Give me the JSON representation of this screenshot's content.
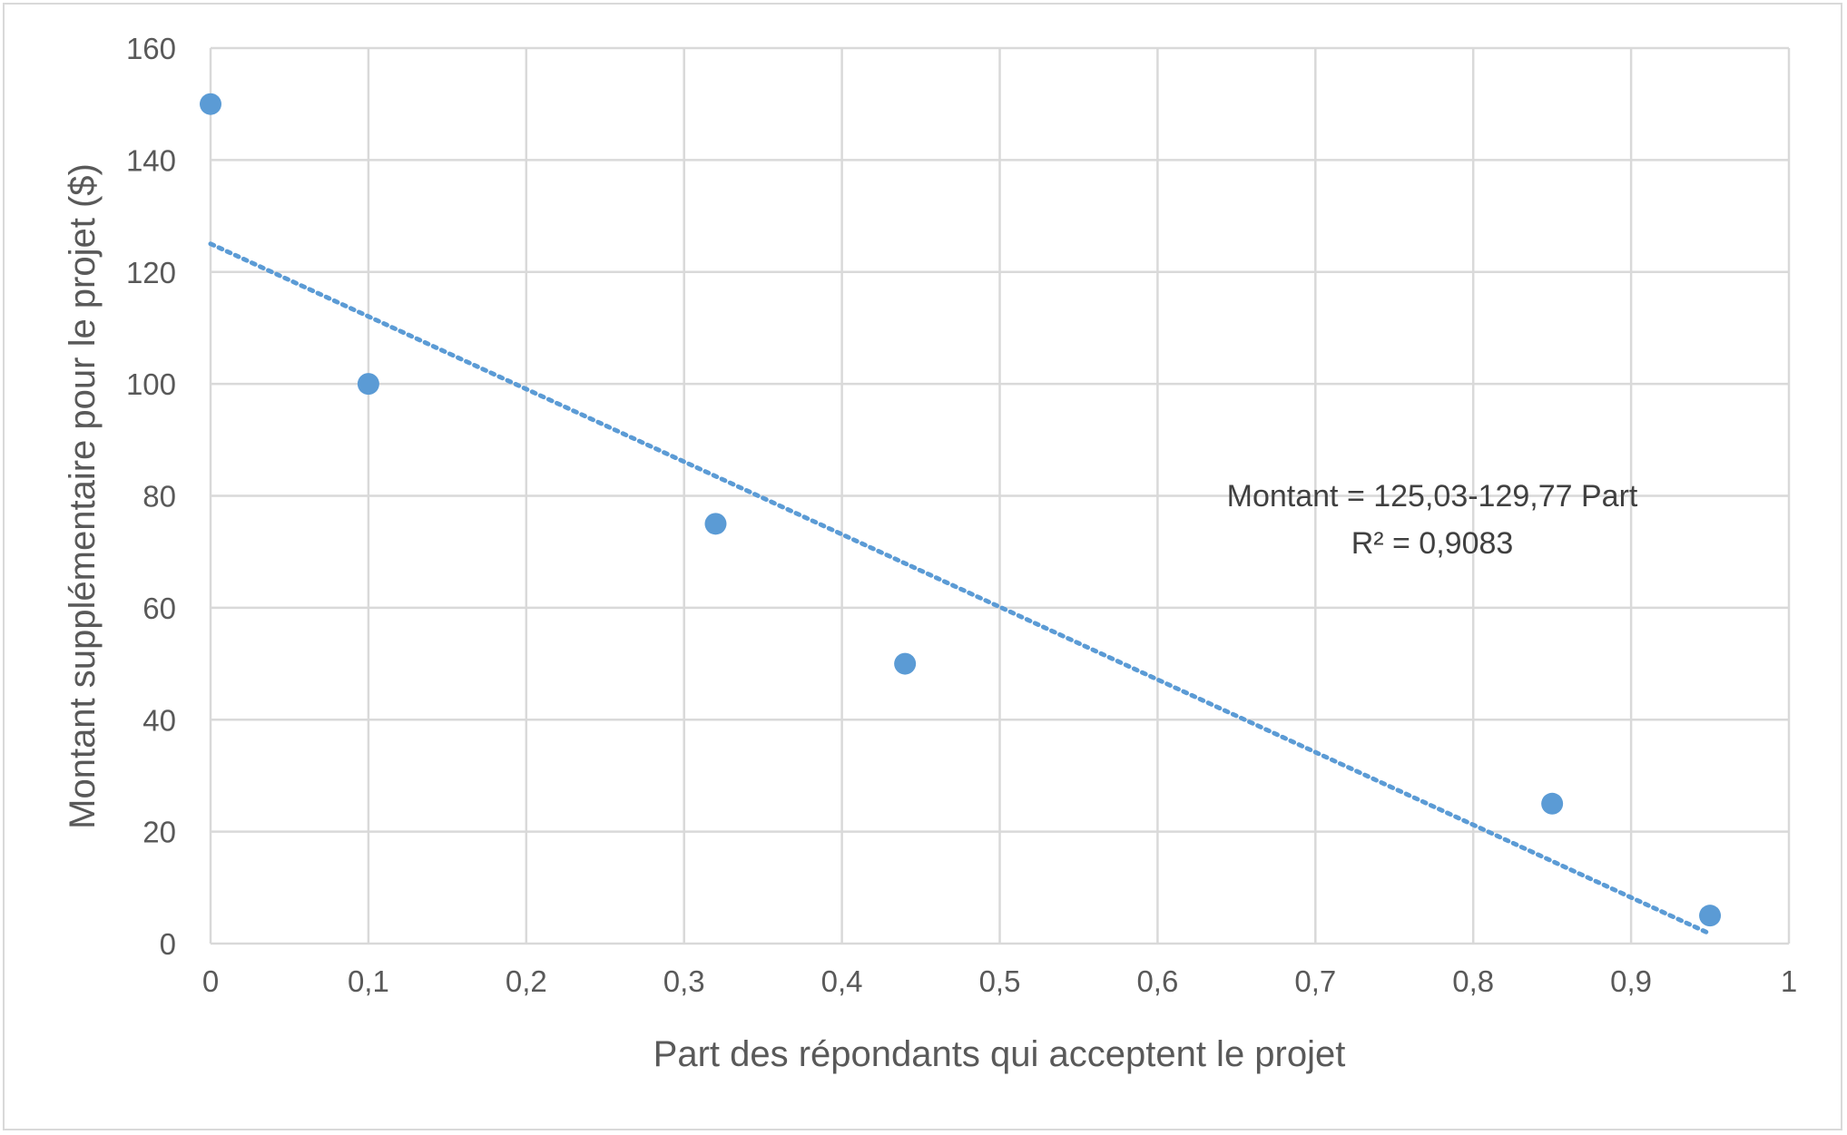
{
  "chart_data": {
    "type": "scatter",
    "xlabel": "Part des répondants qui acceptent le projet",
    "ylabel": "Montant supplémentaire pour le projet ($)",
    "xlim": [
      0,
      1
    ],
    "ylim": [
      0,
      160
    ],
    "x_ticks": [
      "0",
      "0,1",
      "0,2",
      "0,3",
      "0,4",
      "0,5",
      "0,6",
      "0,7",
      "0,8",
      "0,9",
      "1"
    ],
    "y_ticks": [
      "0",
      "20",
      "40",
      "60",
      "80",
      "100",
      "120",
      "140",
      "160"
    ],
    "grid": true,
    "series": [
      {
        "points": [
          {
            "x": 0,
            "y": 150
          },
          {
            "x": 0.1,
            "y": 100
          },
          {
            "x": 0.32,
            "y": 75
          },
          {
            "x": 0.44,
            "y": 50
          },
          {
            "x": 0.85,
            "y": 25
          },
          {
            "x": 0.95,
            "y": 5
          }
        ]
      }
    ],
    "trendline": {
      "style": "dotted",
      "intercept": 125.03,
      "slope": -129.77,
      "x_range": [
        0,
        0.95
      ],
      "equation_label": "Montant = 125,03-129,77 Part",
      "r2_label": "R² = 0,9083"
    },
    "colors": {
      "marker": "#5b9bd5",
      "trendline": "#5b9bd5",
      "grid": "#d9d9d9"
    }
  }
}
